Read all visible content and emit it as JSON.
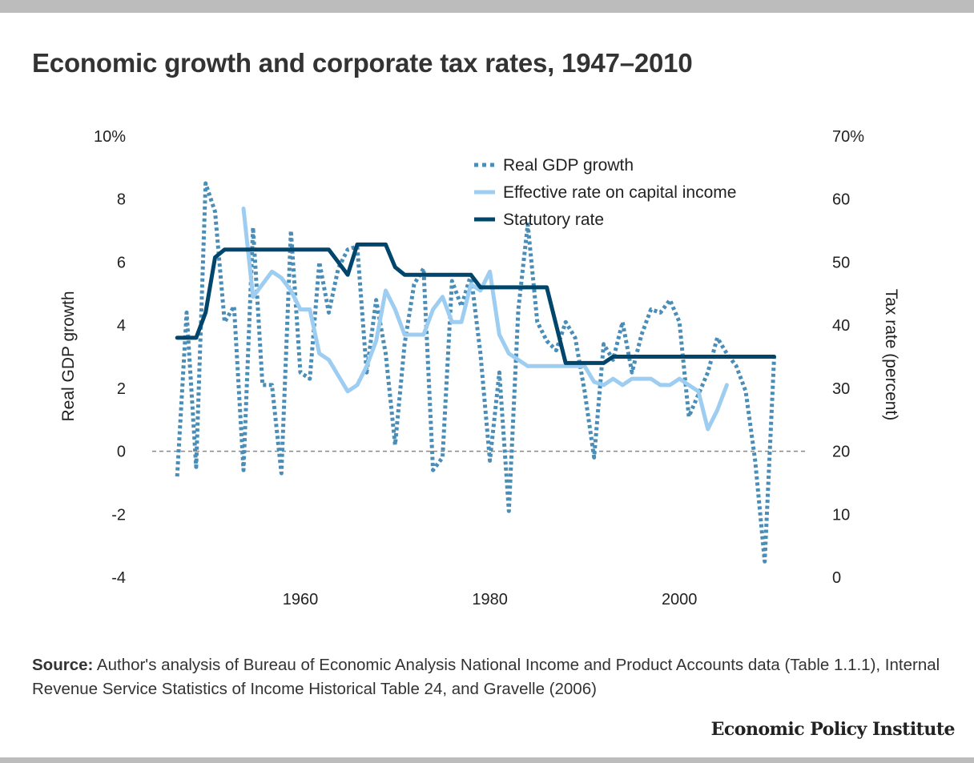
{
  "header": {
    "title": "Economic growth and corporate tax rates, 1947–2010"
  },
  "footer": {
    "source_label": "Source:",
    "source_text": "Author's analysis of Bureau of Economic Analysis National Income and Product Accounts data (Table 1.1.1), Internal Revenue Service Statistics of Income Historical Table 24, and Gravelle (2006)",
    "brand": "Economic Policy Institute"
  },
  "colors": {
    "gdp": "#4a8db7",
    "effective": "#9dcdf0",
    "statutory": "#00456b",
    "zero_line": "#888888"
  },
  "chart_data": {
    "type": "line",
    "title": "Economic growth and corporate tax rates, 1947–2010",
    "xlabel": "",
    "ylabel": "Real GDP growth",
    "y2label": "Tax rate (percent)",
    "xlim": [
      1944,
      2012
    ],
    "ylim": [
      -4,
      10
    ],
    "y2lim": [
      0,
      70
    ],
    "x_ticks": [
      1960,
      1980,
      2000
    ],
    "x_tick_labels": [
      "1960",
      "1980",
      "2000"
    ],
    "y_ticks": [
      10,
      8,
      6,
      4,
      2,
      0,
      -2,
      -4
    ],
    "y_tick_labels": [
      "10%",
      "8",
      "6",
      "4",
      "2",
      "0",
      "-2",
      "-4"
    ],
    "y2_ticks": [
      70,
      60,
      50,
      40,
      30,
      20,
      10,
      0
    ],
    "y2_tick_labels": [
      "70%",
      "60",
      "50",
      "40",
      "30",
      "20",
      "10",
      "0"
    ],
    "grid": false,
    "reference_line": {
      "axis": "y",
      "value": 0,
      "style": "dashed"
    },
    "legend_position": "top-right",
    "series": [
      {
        "name": "Real GDP growth",
        "axis": "left",
        "style": "dotted",
        "x": [
          1947,
          1948,
          1949,
          1950,
          1951,
          1952,
          1953,
          1954,
          1955,
          1956,
          1957,
          1958,
          1959,
          1960,
          1961,
          1962,
          1963,
          1964,
          1965,
          1966,
          1967,
          1968,
          1969,
          1970,
          1971,
          1972,
          1973,
          1974,
          1975,
          1976,
          1977,
          1978,
          1979,
          1980,
          1981,
          1982,
          1983,
          1984,
          1985,
          1986,
          1987,
          1988,
          1989,
          1990,
          1991,
          1992,
          1993,
          1994,
          1995,
          1996,
          1997,
          1998,
          1999,
          2000,
          2001,
          2002,
          2003,
          2004,
          2005,
          2006,
          2007,
          2008,
          2009,
          2010
        ],
        "values": [
          -0.8,
          4.4,
          -0.5,
          8.5,
          7.6,
          4.1,
          4.6,
          -0.6,
          7.1,
          2.1,
          2.1,
          -0.7,
          7.0,
          2.5,
          2.3,
          6.0,
          4.4,
          5.8,
          6.4,
          6.5,
          2.5,
          4.8,
          3.1,
          0.2,
          3.4,
          5.3,
          5.8,
          -0.6,
          -0.2,
          5.4,
          4.6,
          5.6,
          3.1,
          -0.3,
          2.5,
          -1.9,
          4.5,
          7.2,
          4.1,
          3.5,
          3.2,
          4.1,
          3.6,
          1.9,
          -0.2,
          3.4,
          2.9,
          4.1,
          2.5,
          3.7,
          4.5,
          4.4,
          4.8,
          4.1,
          1.1,
          1.8,
          2.5,
          3.6,
          3.1,
          2.7,
          1.9,
          -0.3,
          -3.5,
          3.0
        ]
      },
      {
        "name": "Effective rate on capital income",
        "axis": "right",
        "style": "solid",
        "x": [
          1954,
          1955,
          1956,
          1957,
          1958,
          1959,
          1960,
          1961,
          1962,
          1963,
          1964,
          1965,
          1966,
          1967,
          1968,
          1969,
          1970,
          1971,
          1972,
          1973,
          1974,
          1975,
          1976,
          1977,
          1978,
          1979,
          1980,
          1981,
          1982,
          1983,
          1984,
          1985,
          1986,
          1987,
          1988,
          1989,
          1990,
          1991,
          1992,
          1993,
          1994,
          1995,
          1996,
          1997,
          1998,
          1999,
          2000,
          2001,
          2002,
          2003,
          2004,
          2005
        ],
        "values": [
          58.5,
          44.5,
          46.5,
          48.5,
          47.5,
          45.5,
          42.5,
          42.5,
          35.5,
          34.5,
          32,
          29.5,
          30.5,
          33.5,
          37.5,
          45.5,
          42.5,
          38.5,
          38.5,
          38.5,
          42.5,
          44.5,
          40.5,
          40.5,
          46.5,
          45.5,
          48.5,
          38.5,
          35.5,
          34.5,
          33.5,
          33.5,
          33.5,
          33.5,
          33.5,
          33.5,
          33.5,
          31,
          30.5,
          31.5,
          30.5,
          31.5,
          31.5,
          31.5,
          30.5,
          30.5,
          31.5,
          30.5,
          29.5,
          23.5,
          26.5,
          30.5
        ]
      },
      {
        "name": "Statutory rate",
        "axis": "right",
        "style": "solid",
        "x": [
          1947,
          1948,
          1949,
          1950,
          1951,
          1952,
          1953,
          1954,
          1955,
          1956,
          1957,
          1958,
          1959,
          1960,
          1961,
          1962,
          1963,
          1964,
          1965,
          1966,
          1967,
          1968,
          1969,
          1970,
          1971,
          1972,
          1973,
          1974,
          1975,
          1976,
          1977,
          1978,
          1979,
          1980,
          1981,
          1982,
          1983,
          1984,
          1985,
          1986,
          1987,
          1988,
          1989,
          1990,
          1991,
          1992,
          1993,
          1994,
          1995,
          1996,
          1997,
          1998,
          1999,
          2000,
          2001,
          2002,
          2003,
          2004,
          2005,
          2006,
          2007,
          2008,
          2009,
          2010
        ],
        "values": [
          38,
          38,
          38,
          42,
          50.75,
          52,
          52,
          52,
          52,
          52,
          52,
          52,
          52,
          52,
          52,
          52,
          52,
          50,
          48,
          52.8,
          52.8,
          52.8,
          52.8,
          49.2,
          48,
          48,
          48,
          48,
          48,
          48,
          48,
          48,
          46,
          46,
          46,
          46,
          46,
          46,
          46,
          46,
          40,
          34,
          34,
          34,
          34,
          34,
          35,
          35,
          35,
          35,
          35,
          35,
          35,
          35,
          35,
          35,
          35,
          35,
          35,
          35,
          35,
          35,
          35,
          35
        ]
      }
    ]
  }
}
